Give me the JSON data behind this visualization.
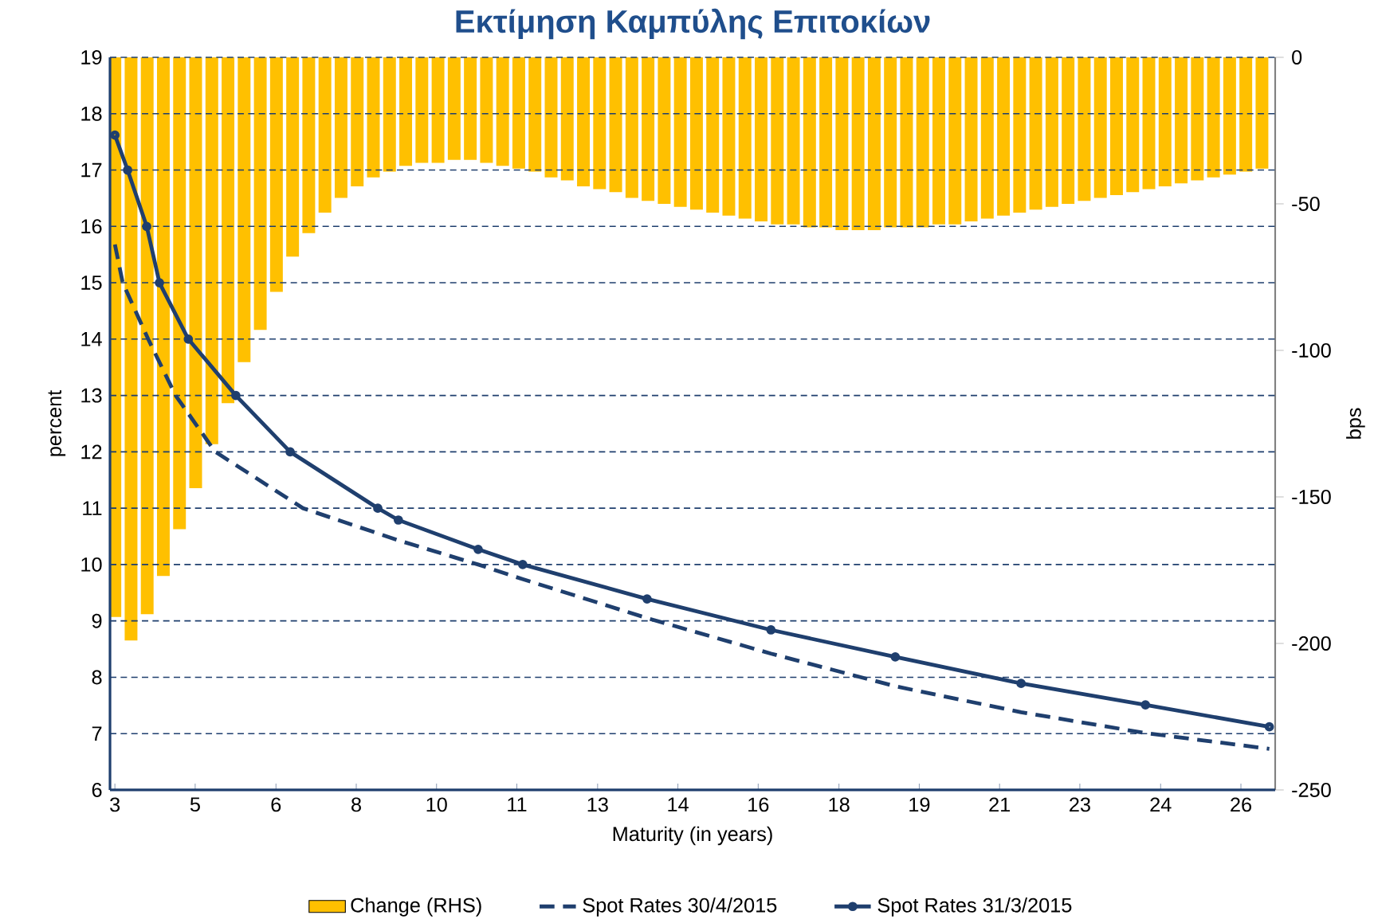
{
  "chart_data": {
    "type": "line",
    "title": "Εκτίμηση Καμπύλης Επιτοκίων",
    "xlabel": "Maturity (in years)",
    "ylabel": "percent",
    "y2label": "bps",
    "xlim": [
      2.9,
      26.7
    ],
    "xticks": [
      3,
      {
        "value": 4.64,
        "label": "5"
      },
      {
        "value": 6.29,
        "label": "6"
      },
      {
        "value": 7.93,
        "label": "8"
      },
      {
        "value": 9.57,
        "label": "10"
      },
      {
        "value": 11.21,
        "label": "11"
      },
      {
        "value": 12.86,
        "label": "13"
      },
      {
        "value": 14.5,
        "label": "14"
      },
      {
        "value": 16.14,
        "label": "16"
      },
      {
        "value": 17.79,
        "label": "18"
      },
      {
        "value": 19.43,
        "label": "19"
      },
      {
        "value": 21.07,
        "label": "21"
      },
      {
        "value": 22.71,
        "label": "23"
      },
      {
        "value": 24.36,
        "label": "24"
      },
      26
    ],
    "ylim": [
      6,
      19
    ],
    "yticks": [
      6,
      7,
      8,
      9,
      10,
      11,
      12,
      13,
      14,
      15,
      16,
      17,
      18,
      19
    ],
    "y2lim": [
      -250,
      0
    ],
    "y2ticks": [
      -250,
      -200,
      -150,
      -100,
      -50,
      0
    ],
    "grid": "y",
    "legend": "bottom",
    "series": [
      {
        "name": "Change (RHS)",
        "type": "bar",
        "axis": "y2",
        "color": "#ffc000",
        "x": [
          3,
          3.33,
          3.66,
          3.99,
          4.32,
          4.65,
          4.98,
          5.31,
          5.64,
          5.97,
          6.3,
          6.63,
          6.96,
          7.29,
          7.62,
          7.95,
          8.28,
          8.61,
          8.94,
          9.27,
          9.6,
          9.93,
          10.26,
          10.59,
          10.92,
          11.25,
          11.58,
          11.91,
          12.24,
          12.57,
          12.9,
          13.23,
          13.56,
          13.89,
          14.22,
          14.55,
          14.88,
          15.21,
          15.54,
          15.87,
          16.2,
          16.53,
          16.86,
          17.19,
          17.52,
          17.85,
          18.18,
          18.51,
          18.84,
          19.17,
          19.5,
          19.83,
          20.16,
          20.49,
          20.82,
          21.15,
          21.48,
          21.81,
          22.14,
          22.47,
          22.8,
          23.13,
          23.46,
          23.79,
          24.12,
          24.45,
          24.78,
          25.11,
          25.44,
          25.77,
          26.1,
          26.43
        ],
        "values": [
          -191,
          -199,
          -190,
          -177,
          -161,
          -147,
          -132,
          -118,
          -104,
          -93,
          -80,
          -68,
          -60,
          -53,
          -48,
          -44,
          -41,
          -39,
          -37,
          -36,
          -36,
          -35,
          -35,
          -36,
          -37,
          -38,
          -39,
          -41,
          -42,
          -44,
          -45,
          -46,
          -48,
          -49,
          -50,
          -51,
          -52,
          -53,
          -54,
          -55,
          -56,
          -57,
          -57,
          -58,
          -58,
          -59,
          -59,
          -59,
          -58,
          -58,
          -58,
          -57,
          -57,
          -56,
          -55,
          -54,
          -53,
          -52,
          -51,
          -50,
          -49,
          -48,
          -47,
          -46,
          -45,
          -44,
          -43,
          -42,
          -41,
          -40,
          -39,
          -38
        ]
      },
      {
        "name": "Spot Rates 30/4/2015",
        "color": "#1f3f6e",
        "line_style": "dashed",
        "marker": "none",
        "x": [
          3,
          3.16,
          3.68,
          4.24,
          5.05,
          6.84,
          8.79,
          10.42,
          11.33,
          13.87,
          16.4,
          18.94,
          21.51,
          24.05,
          26.58
        ],
        "values": [
          15.68,
          15.0,
          14.0,
          13.0,
          12.0,
          11.0,
          10.43,
          10.0,
          9.74,
          9.05,
          8.42,
          7.84,
          7.38,
          7.01,
          6.73
        ]
      },
      {
        "name": "Spot Rates 31/3/2015",
        "color": "#1f3f6e",
        "line_style": "solid",
        "marker": "circle",
        "x": [
          3,
          3.26,
          3.65,
          3.91,
          4.5,
          5.47,
          6.58,
          8.37,
          8.79,
          10.42,
          11.33,
          13.87,
          16.4,
          18.94,
          21.51,
          24.05,
          26.58
        ],
        "values": [
          17.62,
          17.0,
          16.0,
          15.0,
          14.0,
          13.0,
          12.0,
          11.0,
          10.79,
          10.27,
          10.0,
          9.39,
          8.84,
          8.36,
          7.89,
          7.51,
          7.12
        ]
      }
    ]
  }
}
